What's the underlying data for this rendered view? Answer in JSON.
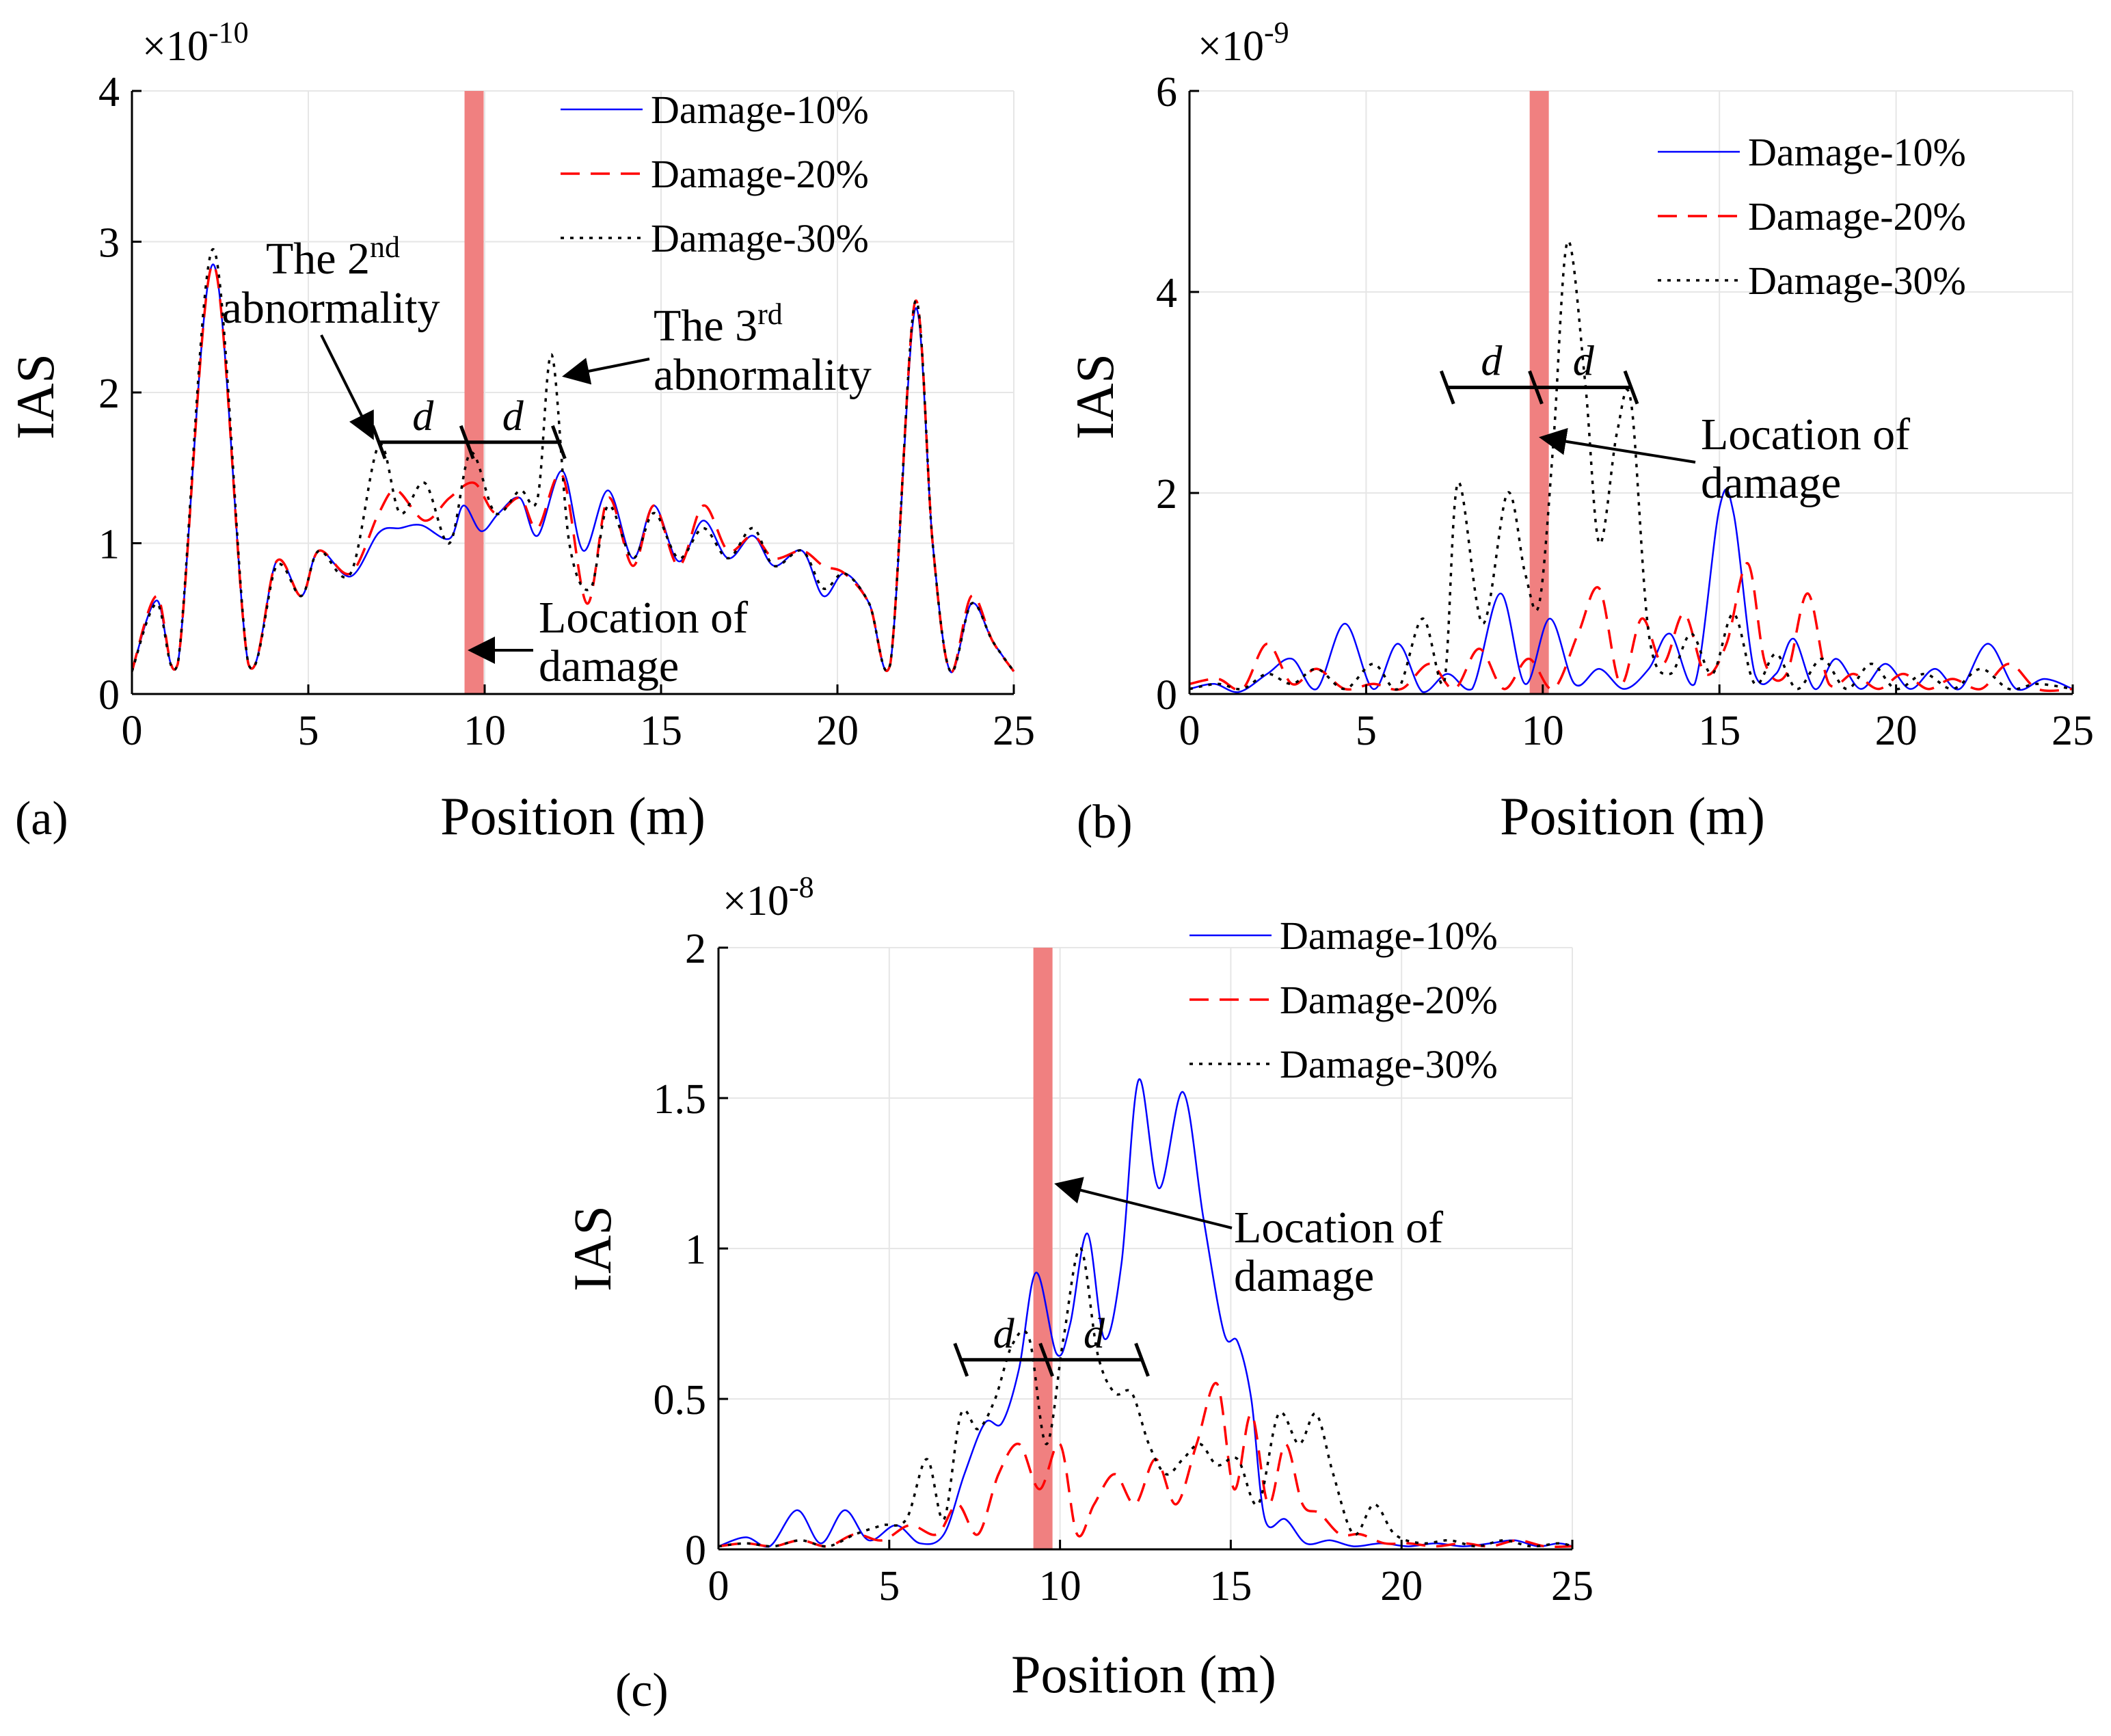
{
  "colors": {
    "damage10": "#0000ff",
    "damage20": "#ff0000",
    "damage30": "#000000",
    "damage_band": "#f08080",
    "grid": "#e6e6e6"
  },
  "chart_data": [
    {
      "type": "line",
      "panel_label": "(a)",
      "xlabel": "Position (m)",
      "ylabel": "IAS",
      "exponent": "×10-10",
      "exponent_base": "×10",
      "exponent_power": "-10",
      "xlim": [
        0,
        25
      ],
      "ylim": [
        0,
        4
      ],
      "xticks": [
        0,
        5,
        10,
        15,
        20,
        25
      ],
      "yticks": [
        0,
        1,
        2,
        3,
        4
      ],
      "ytick_labels": [
        "0",
        "1",
        "2",
        "3",
        "4"
      ],
      "grid": true,
      "legend_position": "top-right",
      "damage_location": 9.7,
      "d_markers": [
        7.0,
        9.5,
        12.1
      ],
      "d_marker_y": 1.67,
      "d_label": "d",
      "annotations": {
        "second_line1": "The 2",
        "second_sup": "nd",
        "second_line2": "abnormality",
        "third_line1": "The 3",
        "third_sup": "rd",
        "third_line2": "abnormality",
        "loc_line1": "Location of",
        "loc_line2": "damage"
      },
      "series": [
        {
          "name": "Damage-10%",
          "style": "solid",
          "x": [
            0,
            0.7,
            1.3,
            2.3,
            3.3,
            4.1,
            4.8,
            5.3,
            6.2,
            7.0,
            7.6,
            8.2,
            9.0,
            9.4,
            9.9,
            10.4,
            11.0,
            11.5,
            12.2,
            12.8,
            13.5,
            14.2,
            14.8,
            15.5,
            16.2,
            16.9,
            17.6,
            18.2,
            19.0,
            19.6,
            20.2,
            20.9,
            21.5,
            22.2,
            22.7,
            23.2,
            23.8,
            24.4,
            25
          ],
          "y": [
            0.15,
            0.62,
            0.2,
            2.85,
            0.2,
            0.88,
            0.65,
            0.95,
            0.78,
            1.07,
            1.1,
            1.12,
            1.03,
            1.25,
            1.08,
            1.2,
            1.3,
            1.05,
            1.48,
            0.95,
            1.35,
            0.9,
            1.25,
            0.88,
            1.15,
            0.9,
            1.05,
            0.85,
            0.95,
            0.65,
            0.8,
            0.6,
            0.2,
            2.55,
            1.0,
            0.15,
            0.6,
            0.35,
            0.15
          ]
        },
        {
          "name": "Damage-20%",
          "style": "dashed",
          "x": [
            0,
            0.7,
            1.3,
            2.3,
            3.3,
            4.1,
            4.8,
            5.3,
            6.2,
            7.0,
            7.5,
            8.3,
            9.0,
            9.7,
            10.3,
            11.0,
            11.5,
            12.2,
            12.9,
            13.5,
            14.2,
            14.8,
            15.5,
            16.2,
            16.9,
            17.6,
            18.2,
            19.0,
            19.6,
            20.2,
            20.9,
            21.5,
            22.2,
            22.7,
            23.2,
            23.8,
            24.4,
            25
          ],
          "y": [
            0.15,
            0.65,
            0.2,
            2.85,
            0.2,
            0.88,
            0.65,
            0.95,
            0.8,
            1.2,
            1.35,
            1.15,
            1.3,
            1.4,
            1.2,
            1.3,
            1.1,
            1.45,
            0.6,
            1.3,
            0.85,
            1.25,
            0.85,
            1.25,
            0.95,
            1.05,
            0.9,
            0.95,
            0.85,
            0.8,
            0.6,
            0.2,
            2.6,
            1.0,
            0.15,
            0.65,
            0.35,
            0.15
          ]
        },
        {
          "name": "Damage-30%",
          "style": "dotted",
          "x": [
            0,
            0.7,
            1.3,
            2.3,
            3.3,
            4.1,
            4.8,
            5.3,
            6.2,
            7.0,
            7.6,
            8.3,
            9.0,
            9.6,
            10.3,
            11.0,
            11.5,
            11.9,
            12.4,
            13.0,
            13.5,
            14.2,
            14.8,
            15.5,
            16.2,
            16.9,
            17.6,
            18.2,
            19.0,
            19.6,
            20.2,
            20.9,
            21.5,
            22.2,
            22.7,
            23.2,
            23.8,
            24.4,
            25
          ],
          "y": [
            0.15,
            0.6,
            0.2,
            2.95,
            0.2,
            0.85,
            0.65,
            0.95,
            0.8,
            1.65,
            1.2,
            1.4,
            1.0,
            1.6,
            1.2,
            1.35,
            1.3,
            2.25,
            1.0,
            0.7,
            1.25,
            0.9,
            1.2,
            0.9,
            1.1,
            0.9,
            1.1,
            0.85,
            0.95,
            0.7,
            0.8,
            0.6,
            0.2,
            2.6,
            1.0,
            0.15,
            0.6,
            0.35,
            0.15
          ]
        }
      ]
    },
    {
      "type": "line",
      "panel_label": "(b)",
      "xlabel": "Position (m)",
      "ylabel": "IAS",
      "exponent": "×10-9",
      "exponent_base": "×10",
      "exponent_power": "-9",
      "xlim": [
        0,
        25
      ],
      "ylim": [
        0,
        6
      ],
      "xticks": [
        0,
        5,
        10,
        15,
        20,
        25
      ],
      "yticks": [
        0,
        2,
        4,
        6
      ],
      "ytick_labels": [
        "0",
        "2",
        "4",
        "6"
      ],
      "grid": true,
      "legend_position": "top-right",
      "damage_location": 9.9,
      "d_markers": [
        7.3,
        9.8,
        12.5
      ],
      "d_marker_y": 3.05,
      "d_label": "d",
      "annotations": {
        "loc_line1": "Location of",
        "loc_line2": "damage"
      },
      "series": [
        {
          "name": "Damage-10%",
          "style": "solid",
          "x": [
            0,
            0.7,
            1.4,
            2.2,
            2.9,
            3.6,
            4.4,
            5.2,
            5.9,
            6.6,
            7.3,
            8.0,
            8.8,
            9.5,
            10.2,
            10.9,
            11.6,
            12.3,
            13.0,
            13.6,
            14.3,
            15.0,
            15.4,
            16.0,
            16.6,
            17.1,
            17.7,
            18.3,
            19.0,
            19.7,
            20.4,
            21.1,
            21.8,
            22.6,
            23.4,
            24.2,
            25
          ],
          "y": [
            0.05,
            0.1,
            0.02,
            0.2,
            0.35,
            0.05,
            0.7,
            0.05,
            0.5,
            0.02,
            0.2,
            0.05,
            1.0,
            0.1,
            0.75,
            0.1,
            0.25,
            0.05,
            0.25,
            0.6,
            0.1,
            1.85,
            1.8,
            0.2,
            0.2,
            0.55,
            0.05,
            0.35,
            0.05,
            0.3,
            0.05,
            0.25,
            0.05,
            0.5,
            0.05,
            0.15,
            0.05
          ]
        },
        {
          "name": "Damage-20%",
          "style": "dashed",
          "x": [
            0,
            0.8,
            1.5,
            2.2,
            2.9,
            3.6,
            4.4,
            5.2,
            6.0,
            6.8,
            7.5,
            8.2,
            8.9,
            9.6,
            10.3,
            11.0,
            11.6,
            12.2,
            12.8,
            13.4,
            14.0,
            14.6,
            15.2,
            15.8,
            16.3,
            16.9,
            17.5,
            18.1,
            18.8,
            19.5,
            20.2,
            20.9,
            21.6,
            22.4,
            23.2,
            24.0,
            25
          ],
          "y": [
            0.1,
            0.15,
            0.05,
            0.5,
            0.1,
            0.25,
            0.05,
            0.1,
            0.05,
            0.3,
            0.05,
            0.45,
            0.05,
            0.35,
            0.05,
            0.6,
            1.05,
            0.1,
            0.75,
            0.3,
            0.8,
            0.2,
            0.5,
            1.3,
            0.3,
            0.2,
            1.0,
            0.1,
            0.2,
            0.05,
            0.2,
            0.05,
            0.15,
            0.05,
            0.3,
            0.05,
            0.05
          ]
        },
        {
          "name": "Damage-30%",
          "style": "dotted",
          "x": [
            0,
            0.8,
            1.5,
            2.2,
            2.9,
            3.6,
            4.4,
            5.2,
            5.9,
            6.6,
            7.2,
            7.6,
            8.3,
            9.0,
            9.5,
            9.9,
            10.3,
            10.7,
            11.2,
            11.6,
            12.1,
            12.5,
            13.0,
            13.6,
            14.2,
            14.8,
            15.4,
            16.0,
            16.6,
            17.2,
            17.9,
            18.6,
            19.3,
            20.0,
            20.8,
            21.6,
            22.4,
            23.2,
            24.0,
            25
          ],
          "y": [
            0.05,
            0.1,
            0.05,
            0.2,
            0.1,
            0.25,
            0.05,
            0.3,
            0.05,
            0.75,
            0.1,
            2.1,
            0.7,
            2.0,
            1.2,
            0.9,
            2.5,
            4.5,
            3.1,
            1.5,
            2.6,
            2.9,
            0.6,
            0.2,
            0.6,
            0.2,
            0.8,
            0.1,
            0.4,
            0.05,
            0.35,
            0.05,
            0.3,
            0.05,
            0.2,
            0.05,
            0.25,
            0.05,
            0.1,
            0.05
          ]
        }
      ]
    },
    {
      "type": "line",
      "panel_label": "(c)",
      "xlabel": "Position (m)",
      "ylabel": "IAS",
      "exponent": "×10-8",
      "exponent_base": "×10",
      "exponent_power": "-8",
      "xlim": [
        0,
        25
      ],
      "ylim": [
        0,
        2
      ],
      "xticks": [
        0,
        5,
        10,
        15,
        20,
        25
      ],
      "yticks": [
        0,
        0.5,
        1,
        1.5,
        2
      ],
      "ytick_labels": [
        "0",
        "0.5",
        "1",
        "1.5",
        "2"
      ],
      "grid": true,
      "legend_position": "top-right",
      "damage_location": 9.5,
      "d_markers": [
        7.1,
        9.6,
        12.4
      ],
      "d_marker_y": 0.63,
      "d_label": "d",
      "annotations": {
        "loc_line1": "Location of",
        "loc_line2": "damage"
      },
      "series": [
        {
          "name": "Damage-10%",
          "style": "solid",
          "x": [
            0,
            0.8,
            1.5,
            2.3,
            3.0,
            3.7,
            4.4,
            5.2,
            5.9,
            6.6,
            7.2,
            7.8,
            8.3,
            8.8,
            9.3,
            9.9,
            10.3,
            10.8,
            11.3,
            11.8,
            12.3,
            12.9,
            13.6,
            14.2,
            14.8,
            15.2,
            15.6,
            16.0,
            16.6,
            17.2,
            17.9,
            18.6,
            19.4,
            20.2,
            21.0,
            21.8,
            22.6,
            23.3,
            24.0,
            24.6,
            25
          ],
          "y": [
            0.01,
            0.04,
            0.01,
            0.13,
            0.02,
            0.13,
            0.03,
            0.08,
            0.02,
            0.05,
            0.25,
            0.42,
            0.42,
            0.6,
            0.92,
            0.65,
            0.75,
            1.05,
            0.7,
            0.95,
            1.56,
            1.2,
            1.52,
            1.1,
            0.72,
            0.69,
            0.5,
            0.1,
            0.1,
            0.02,
            0.03,
            0.01,
            0.02,
            0.01,
            0.02,
            0.01,
            0.02,
            0.03,
            0.01,
            0.02,
            0.01
          ]
        },
        {
          "name": "Damage-20%",
          "style": "dashed",
          "x": [
            0,
            0.8,
            1.6,
            2.4,
            3.2,
            4.0,
            4.8,
            5.6,
            6.4,
            7.0,
            7.6,
            8.2,
            8.8,
            9.4,
            10.0,
            10.5,
            11.0,
            11.6,
            12.2,
            12.8,
            13.4,
            14.0,
            14.6,
            15.1,
            15.6,
            16.1,
            16.6,
            17.1,
            17.6,
            18.2,
            18.8,
            19.5,
            20.2,
            21.0,
            21.8,
            22.6,
            23.4,
            24.2,
            25
          ],
          "y": [
            0.01,
            0.02,
            0.01,
            0.03,
            0.01,
            0.05,
            0.03,
            0.08,
            0.05,
            0.15,
            0.05,
            0.25,
            0.35,
            0.2,
            0.35,
            0.05,
            0.15,
            0.25,
            0.15,
            0.3,
            0.15,
            0.35,
            0.55,
            0.2,
            0.45,
            0.15,
            0.35,
            0.15,
            0.12,
            0.05,
            0.05,
            0.02,
            0.02,
            0.01,
            0.02,
            0.01,
            0.03,
            0.01,
            0.01
          ]
        },
        {
          "name": "Damage-30%",
          "style": "dotted",
          "x": [
            0,
            0.8,
            1.6,
            2.4,
            3.2,
            4.0,
            4.8,
            5.5,
            6.1,
            6.6,
            7.1,
            7.6,
            8.1,
            8.6,
            9.1,
            9.6,
            10.1,
            10.6,
            11.1,
            11.6,
            12.1,
            12.6,
            13.1,
            13.6,
            14.1,
            14.6,
            15.2,
            15.8,
            16.4,
            17.0,
            17.5,
            18.0,
            18.6,
            19.2,
            19.8,
            20.6,
            21.4,
            22.2,
            23.0,
            23.8,
            24.6,
            25
          ],
          "y": [
            0.01,
            0.02,
            0.01,
            0.03,
            0.01,
            0.05,
            0.08,
            0.1,
            0.3,
            0.1,
            0.45,
            0.4,
            0.5,
            0.68,
            0.7,
            0.35,
            0.7,
            1.0,
            0.65,
            0.52,
            0.52,
            0.35,
            0.25,
            0.3,
            0.35,
            0.28,
            0.3,
            0.15,
            0.45,
            0.35,
            0.45,
            0.25,
            0.05,
            0.15,
            0.05,
            0.02,
            0.03,
            0.01,
            0.03,
            0.01,
            0.02,
            0.01
          ]
        }
      ]
    }
  ]
}
